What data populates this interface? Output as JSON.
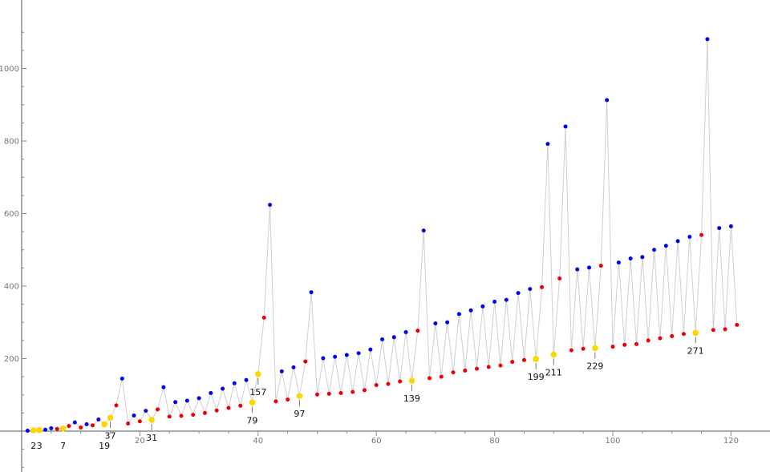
{
  "chart_data": {
    "type": "scatter",
    "connected_line": true,
    "line_color": "#cfcfcf",
    "grid": false,
    "xlim": [
      0,
      122
    ],
    "ylim": [
      -110,
      1130
    ],
    "x_ticks": [
      20,
      40,
      60,
      80,
      100,
      120
    ],
    "y_ticks": [
      200,
      400,
      600,
      800,
      1000
    ],
    "colors": {
      "blue": "#0000ee",
      "red": "#ee0000",
      "yellow": "#ffd700"
    },
    "points": [
      {
        "x": 1,
        "y": 1,
        "c": "blue"
      },
      {
        "x": 2,
        "y": 2,
        "c": "yellow"
      },
      {
        "x": 3,
        "y": 3,
        "c": "yellow"
      },
      {
        "x": 4,
        "y": 4,
        "c": "blue"
      },
      {
        "x": 5,
        "y": 8,
        "c": "blue"
      },
      {
        "x": 6,
        "y": 6,
        "c": "red"
      },
      {
        "x": 7,
        "y": 7,
        "c": "yellow"
      },
      {
        "x": 8,
        "y": 14,
        "c": "red"
      },
      {
        "x": 9,
        "y": 24,
        "c": "blue"
      },
      {
        "x": 10,
        "y": 10,
        "c": "red"
      },
      {
        "x": 11,
        "y": 19,
        "c": "blue"
      },
      {
        "x": 12,
        "y": 16,
        "c": "red"
      },
      {
        "x": 13,
        "y": 32,
        "c": "blue"
      },
      {
        "x": 14,
        "y": 19,
        "c": "yellow"
      },
      {
        "x": 15,
        "y": 37,
        "c": "yellow"
      },
      {
        "x": 16,
        "y": 71,
        "c": "red"
      },
      {
        "x": 17,
        "y": 145,
        "c": "blue"
      },
      {
        "x": 18,
        "y": 21,
        "c": "red"
      },
      {
        "x": 19,
        "y": 43,
        "c": "blue"
      },
      {
        "x": 20,
        "y": 27,
        "c": "red"
      },
      {
        "x": 21,
        "y": 56,
        "c": "blue"
      },
      {
        "x": 22,
        "y": 31,
        "c": "yellow"
      },
      {
        "x": 23,
        "y": 60,
        "c": "red"
      },
      {
        "x": 24,
        "y": 121,
        "c": "blue"
      },
      {
        "x": 25,
        "y": 40,
        "c": "red"
      },
      {
        "x": 26,
        "y": 80,
        "c": "blue"
      },
      {
        "x": 27,
        "y": 42,
        "c": "red"
      },
      {
        "x": 28,
        "y": 84,
        "c": "blue"
      },
      {
        "x": 29,
        "y": 45,
        "c": "red"
      },
      {
        "x": 30,
        "y": 91,
        "c": "blue"
      },
      {
        "x": 31,
        "y": 50,
        "c": "red"
      },
      {
        "x": 32,
        "y": 105,
        "c": "blue"
      },
      {
        "x": 33,
        "y": 57,
        "c": "red"
      },
      {
        "x": 34,
        "y": 117,
        "c": "blue"
      },
      {
        "x": 35,
        "y": 64,
        "c": "red"
      },
      {
        "x": 36,
        "y": 132,
        "c": "blue"
      },
      {
        "x": 37,
        "y": 70,
        "c": "red"
      },
      {
        "x": 38,
        "y": 141,
        "c": "blue"
      },
      {
        "x": 39,
        "y": 79,
        "c": "yellow"
      },
      {
        "x": 40,
        "y": 157,
        "c": "yellow"
      },
      {
        "x": 41,
        "y": 313,
        "c": "red"
      },
      {
        "x": 42,
        "y": 624,
        "c": "blue"
      },
      {
        "x": 43,
        "y": 82,
        "c": "red"
      },
      {
        "x": 44,
        "y": 165,
        "c": "blue"
      },
      {
        "x": 45,
        "y": 87,
        "c": "red"
      },
      {
        "x": 46,
        "y": 176,
        "c": "blue"
      },
      {
        "x": 47,
        "y": 97,
        "c": "yellow"
      },
      {
        "x": 48,
        "y": 192,
        "c": "red"
      },
      {
        "x": 49,
        "y": 383,
        "c": "blue"
      },
      {
        "x": 50,
        "y": 101,
        "c": "red"
      },
      {
        "x": 51,
        "y": 201,
        "c": "blue"
      },
      {
        "x": 52,
        "y": 103,
        "c": "red"
      },
      {
        "x": 53,
        "y": 205,
        "c": "blue"
      },
      {
        "x": 54,
        "y": 105,
        "c": "red"
      },
      {
        "x": 55,
        "y": 210,
        "c": "blue"
      },
      {
        "x": 56,
        "y": 108,
        "c": "red"
      },
      {
        "x": 57,
        "y": 215,
        "c": "blue"
      },
      {
        "x": 58,
        "y": 113,
        "c": "red"
      },
      {
        "x": 59,
        "y": 225,
        "c": "blue"
      },
      {
        "x": 60,
        "y": 127,
        "c": "red"
      },
      {
        "x": 61,
        "y": 253,
        "c": "blue"
      },
      {
        "x": 62,
        "y": 130,
        "c": "red"
      },
      {
        "x": 63,
        "y": 259,
        "c": "blue"
      },
      {
        "x": 64,
        "y": 137,
        "c": "red"
      },
      {
        "x": 65,
        "y": 273,
        "c": "blue"
      },
      {
        "x": 66,
        "y": 139,
        "c": "yellow"
      },
      {
        "x": 67,
        "y": 277,
        "c": "red"
      },
      {
        "x": 68,
        "y": 553,
        "c": "blue"
      },
      {
        "x": 69,
        "y": 146,
        "c": "red"
      },
      {
        "x": 70,
        "y": 297,
        "c": "blue"
      },
      {
        "x": 71,
        "y": 150,
        "c": "red"
      },
      {
        "x": 72,
        "y": 300,
        "c": "blue"
      },
      {
        "x": 73,
        "y": 162,
        "c": "red"
      },
      {
        "x": 74,
        "y": 323,
        "c": "blue"
      },
      {
        "x": 75,
        "y": 167,
        "c": "red"
      },
      {
        "x": 76,
        "y": 333,
        "c": "blue"
      },
      {
        "x": 77,
        "y": 172,
        "c": "red"
      },
      {
        "x": 78,
        "y": 344,
        "c": "blue"
      },
      {
        "x": 79,
        "y": 177,
        "c": "red"
      },
      {
        "x": 80,
        "y": 357,
        "c": "blue"
      },
      {
        "x": 81,
        "y": 181,
        "c": "red"
      },
      {
        "x": 82,
        "y": 362,
        "c": "blue"
      },
      {
        "x": 83,
        "y": 191,
        "c": "red"
      },
      {
        "x": 84,
        "y": 381,
        "c": "blue"
      },
      {
        "x": 85,
        "y": 196,
        "c": "red"
      },
      {
        "x": 86,
        "y": 392,
        "c": "blue"
      },
      {
        "x": 87,
        "y": 199,
        "c": "yellow"
      },
      {
        "x": 88,
        "y": 397,
        "c": "red"
      },
      {
        "x": 89,
        "y": 792,
        "c": "blue"
      },
      {
        "x": 90,
        "y": 211,
        "c": "yellow"
      },
      {
        "x": 91,
        "y": 421,
        "c": "red"
      },
      {
        "x": 92,
        "y": 840,
        "c": "blue"
      },
      {
        "x": 93,
        "y": 223,
        "c": "red"
      },
      {
        "x": 94,
        "y": 446,
        "c": "blue"
      },
      {
        "x": 95,
        "y": 227,
        "c": "red"
      },
      {
        "x": 96,
        "y": 451,
        "c": "blue"
      },
      {
        "x": 97,
        "y": 229,
        "c": "yellow"
      },
      {
        "x": 98,
        "y": 456,
        "c": "red"
      },
      {
        "x": 99,
        "y": 913,
        "c": "blue"
      },
      {
        "x": 100,
        "y": 233,
        "c": "red"
      },
      {
        "x": 101,
        "y": 465,
        "c": "blue"
      },
      {
        "x": 102,
        "y": 238,
        "c": "red"
      },
      {
        "x": 103,
        "y": 476,
        "c": "blue"
      },
      {
        "x": 104,
        "y": 240,
        "c": "red"
      },
      {
        "x": 105,
        "y": 480,
        "c": "blue"
      },
      {
        "x": 106,
        "y": 250,
        "c": "red"
      },
      {
        "x": 107,
        "y": 500,
        "c": "blue"
      },
      {
        "x": 108,
        "y": 256,
        "c": "red"
      },
      {
        "x": 109,
        "y": 511,
        "c": "blue"
      },
      {
        "x": 110,
        "y": 262,
        "c": "red"
      },
      {
        "x": 111,
        "y": 524,
        "c": "blue"
      },
      {
        "x": 112,
        "y": 268,
        "c": "red"
      },
      {
        "x": 113,
        "y": 536,
        "c": "blue"
      },
      {
        "x": 114,
        "y": 271,
        "c": "yellow"
      },
      {
        "x": 115,
        "y": 541,
        "c": "red"
      },
      {
        "x": 116,
        "y": 1081,
        "c": "blue"
      },
      {
        "x": 117,
        "y": 279,
        "c": "red"
      },
      {
        "x": 118,
        "y": 560,
        "c": "blue"
      },
      {
        "x": 119,
        "y": 281,
        "c": "red"
      },
      {
        "x": 120,
        "y": 565,
        "c": "blue"
      },
      {
        "x": 121,
        "y": 293,
        "c": "red"
      }
    ],
    "annotations": [
      {
        "label": "2",
        "x": 2
      },
      {
        "label": "3",
        "x": 3
      },
      {
        "label": "7",
        "x": 7
      },
      {
        "label": "19",
        "x": 14
      },
      {
        "label": "37",
        "x": 15
      },
      {
        "label": "31",
        "x": 22
      },
      {
        "label": "79",
        "x": 39
      },
      {
        "label": "157",
        "x": 40
      },
      {
        "label": "97",
        "x": 47
      },
      {
        "label": "139",
        "x": 66
      },
      {
        "label": "199",
        "x": 87
      },
      {
        "label": "211",
        "x": 90
      },
      {
        "label": "229",
        "x": 97
      },
      {
        "label": "271",
        "x": 114
      }
    ]
  }
}
